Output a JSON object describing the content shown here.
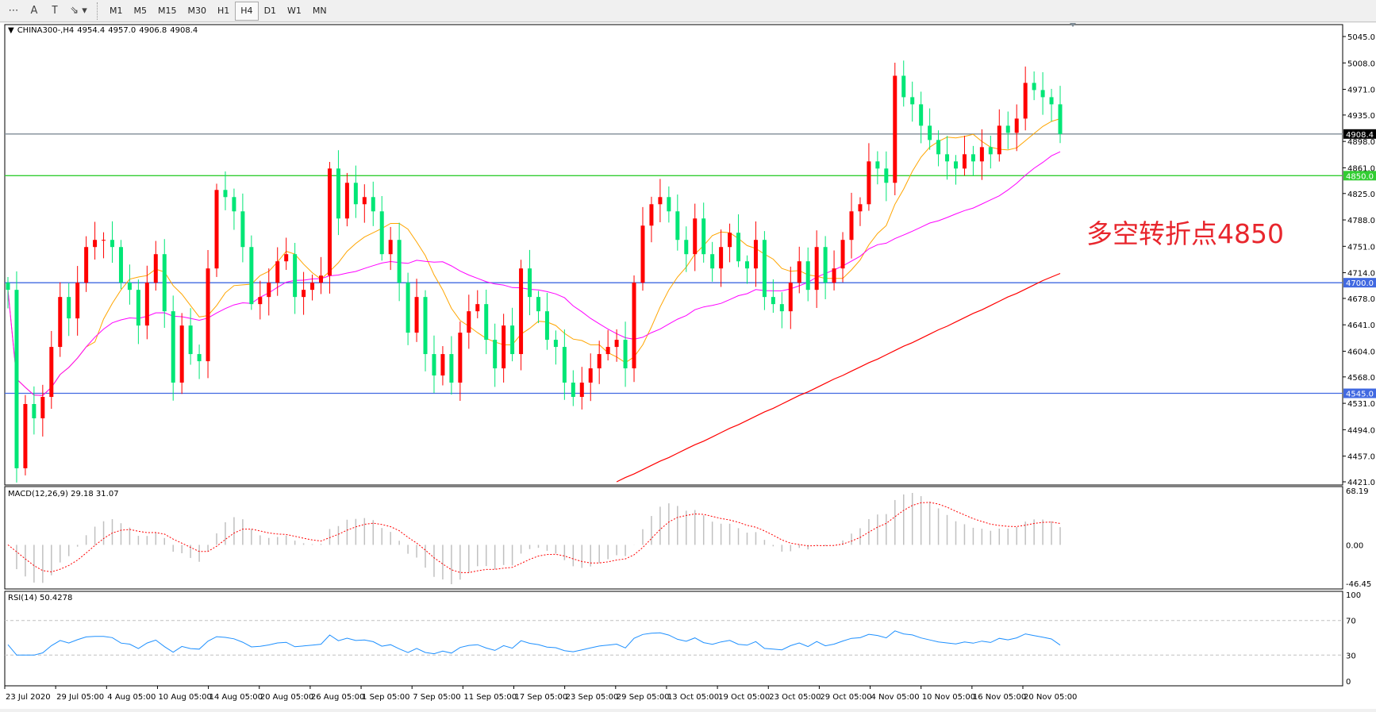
{
  "toolbar": {
    "icons": [
      "grid-f-icon",
      "text-a-icon",
      "text-label-icon",
      "arrows-icon"
    ],
    "timeframes": [
      "M1",
      "M5",
      "M15",
      "M30",
      "H1",
      "H4",
      "D1",
      "W1",
      "MN"
    ],
    "active": "H4"
  },
  "header": {
    "symbol": "CHINA300-,H4",
    "open": "4954.4",
    "high": "4957.0",
    "low": "4906.8",
    "close": "4908.4"
  },
  "annotation": "多空转折点4850",
  "price_axis": [
    "5045.0",
    "5008.0",
    "4971.0",
    "4935.0",
    "4898.0",
    "4861.0",
    "4825.0",
    "4788.0",
    "4751.0",
    "4714.0",
    "4678.0",
    "4641.0",
    "4604.0",
    "4568.0",
    "4531.0",
    "4494.0",
    "4457.0",
    "4421.0"
  ],
  "levels": [
    {
      "value": "4908.4",
      "color": "#000000",
      "line": "#7f8c96"
    },
    {
      "value": "4850.0",
      "color": "#32cd32",
      "line": "#32cd32"
    },
    {
      "value": "4700.0",
      "color": "#4169e1",
      "line": "#4169e1"
    },
    {
      "value": "4545.0",
      "color": "#4169e1",
      "line": "#4169e1"
    }
  ],
  "macd": {
    "label": "MACD(12,26,9) 29.18 31.07",
    "axis": [
      "68.19",
      "0.00",
      "-46.45"
    ]
  },
  "rsi": {
    "label": "RSI(14) 50.4278",
    "axis": [
      "100",
      "70",
      "30",
      "0"
    ]
  },
  "dates": [
    "23 Jul 2020",
    "29 Jul 05:00",
    "4 Aug 05:00",
    "10 Aug 05:00",
    "14 Aug 05:00",
    "20 Aug 05:00",
    "26 Aug 05:00",
    "1 Sep 05:00",
    "7 Sep 05:00",
    "11 Sep 05:00",
    "17 Sep 05:00",
    "23 Sep 05:00",
    "29 Sep 05:00",
    "13 Oct 05:00",
    "19 Oct 05:00",
    "23 Oct 05:00",
    "29 Oct 05:00",
    "4 Nov 05:00",
    "10 Nov 05:00",
    "16 Nov 05:00",
    "20 Nov 05:00"
  ],
  "colors": {
    "up": "#ff0000",
    "down": "#00e676",
    "ma_fast": "#ffa500",
    "ma_mid": "#ff00ff",
    "ma_slow": "#ff0000",
    "rsi": "#1e90ff",
    "macd_hist": "#c0c0c0",
    "macd_signal": "#ff0000"
  },
  "chart_data": {
    "type": "candlestick",
    "ylim": [
      4421,
      5045
    ],
    "closes": [
      4690,
      4440,
      4530,
      4510,
      4540,
      4610,
      4680,
      4650,
      4700,
      4750,
      4760,
      4760,
      4750,
      4700,
      4690,
      4640,
      4700,
      4740,
      4660,
      4560,
      4640,
      4600,
      4590,
      4720,
      4830,
      4820,
      4800,
      4750,
      4670,
      4680,
      4700,
      4730,
      4740,
      4680,
      4690,
      4700,
      4710,
      4860,
      4790,
      4840,
      4810,
      4820,
      4800,
      4740,
      4760,
      4700,
      4630,
      4680,
      4600,
      4570,
      4600,
      4560,
      4630,
      4660,
      4670,
      4620,
      4580,
      4640,
      4600,
      4720,
      4680,
      4660,
      4620,
      4610,
      4560,
      4540,
      4560,
      4580,
      4600,
      4610,
      4620,
      4580,
      4700,
      4780,
      4810,
      4820,
      4800,
      4760,
      4740,
      4790,
      4740,
      4720,
      4750,
      4770,
      4730,
      4720,
      4760,
      4680,
      4670,
      4660,
      4700,
      4730,
      4690,
      4750,
      4700,
      4720,
      4760,
      4800,
      4810,
      4870,
      4860,
      4840,
      4990,
      4960,
      4950,
      4920,
      4900,
      4880,
      4870,
      4860,
      4880,
      4870,
      4890,
      4880,
      4920,
      4910,
      4930,
      4980,
      4970,
      4960,
      4950,
      4908.4
    ],
    "ma_slow": [
      4421,
      4427,
      4432,
      4438,
      4444,
      4450,
      4455,
      4461,
      4467,
      4473,
      4478,
      4484,
      4490,
      4496,
      4501,
      4507,
      4513,
      4519,
      4524,
      4530,
      4536,
      4542,
      4547,
      4553,
      4559,
      4565,
      4570,
      4576,
      4582,
      4588,
      4593,
      4599,
      4605,
      4611,
      4616,
      4622,
      4628,
      4634,
      4639,
      4645,
      4651,
      4657,
      4662,
      4668,
      4674,
      4680,
      4685,
      4691,
      4697,
      4703,
      4708,
      4713
    ]
  }
}
